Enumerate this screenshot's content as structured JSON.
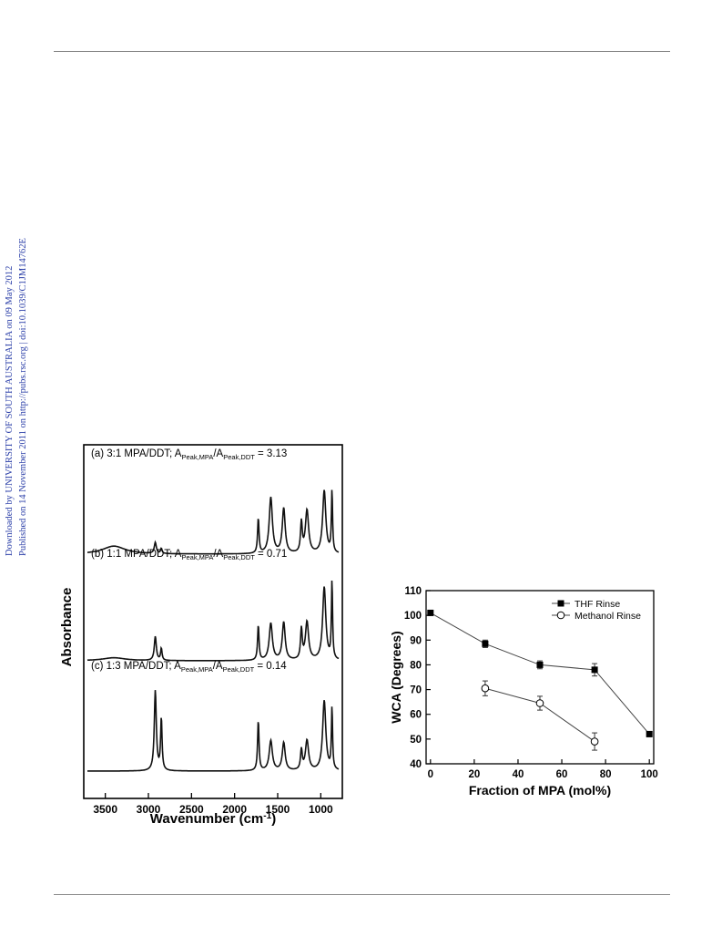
{
  "side_note": {
    "line1": "Downloaded by UNIVERSITY OF SOUTH AUSTRALIA on 09 May 2012",
    "line2": "Published on 14 November 2011 on http://pubs.rsc.org | doi:10.1039/C1JM14762E"
  },
  "chart_data": [
    {
      "type": "line",
      "title": "",
      "xlabel": "Wavenumber (cm-1)",
      "ylabel": "Absorbance",
      "xlim": [
        3750,
        750
      ],
      "x_reversed": true,
      "xticks": [
        3500,
        3000,
        2500,
        2000,
        1500,
        1000
      ],
      "series": [
        {
          "name": "(a) 3:1 MPA/DDT; APeak,MPA/APeak,DDT = 3.13",
          "label_main": "(a) 3:1 MPA/DDT; A",
          "label_sub1": "Peak,MPA",
          "label_mid": "/A",
          "label_sub2": "Peak,DDT",
          "label_tail": " = 3.13",
          "peaks": [
            [
              3400,
              0.08
            ],
            [
              2920,
              0.11
            ],
            [
              2850,
              0.05
            ],
            [
              1725,
              0.35
            ],
            [
              1580,
              0.56
            ],
            [
              1430,
              0.45
            ],
            [
              1225,
              0.3
            ],
            [
              1160,
              0.43
            ],
            [
              960,
              0.63
            ],
            [
              870,
              0.62
            ]
          ]
        },
        {
          "name": "(b) 1:1 MPA/DDT; APeak,MPA/APeak,DDT = 0.71",
          "label_main": "(b) 1:1 MPA/DDT; A",
          "label_sub1": "Peak,MPA",
          "label_mid": "/A",
          "label_sub2": "Peak,DDT",
          "label_tail": " = 0.71",
          "peaks": [
            [
              3400,
              0.03
            ],
            [
              2920,
              0.24
            ],
            [
              2850,
              0.12
            ],
            [
              1725,
              0.35
            ],
            [
              1580,
              0.37
            ],
            [
              1430,
              0.38
            ],
            [
              1225,
              0.3
            ],
            [
              1160,
              0.38
            ],
            [
              960,
              0.73
            ],
            [
              870,
              0.78
            ]
          ]
        },
        {
          "name": "(c) 1:3 MPA/DDT; APeak,MPA/APeak,DDT = 0.14",
          "label_main": "(c) 1:3 MPA/DDT; A",
          "label_sub1": "Peak,MPA",
          "label_mid": "/A",
          "label_sub2": "Peak,DDT",
          "label_tail": " = 0.14",
          "peaks": [
            [
              2920,
              0.8
            ],
            [
              2850,
              0.52
            ],
            [
              1725,
              0.5
            ],
            [
              1580,
              0.3
            ],
            [
              1430,
              0.28
            ],
            [
              1225,
              0.2
            ],
            [
              1160,
              0.3
            ],
            [
              960,
              0.7
            ],
            [
              870,
              0.62
            ]
          ]
        }
      ]
    },
    {
      "type": "scatter",
      "title": "",
      "xlabel": "Fraction of MPA (mol%)",
      "ylabel": "WCA (Degrees)",
      "xlim": [
        -2,
        102
      ],
      "ylim": [
        40,
        110
      ],
      "xticks": [
        0,
        20,
        40,
        60,
        80,
        100
      ],
      "yticks": [
        40,
        50,
        60,
        70,
        80,
        90,
        100,
        110
      ],
      "legend": "top-right",
      "series": [
        {
          "name": "THF Rinse",
          "marker": "filled-square",
          "x": [
            0,
            25,
            50,
            75,
            100
          ],
          "y": [
            101,
            88.5,
            80,
            78,
            52
          ],
          "err": [
            0.8,
            1.5,
            1.6,
            2.5,
            0.8
          ]
        },
        {
          "name": "Methanol Rinse",
          "marker": "open-circle",
          "x": [
            25,
            50,
            75
          ],
          "y": [
            70.5,
            64.5,
            49
          ],
          "err": [
            3,
            2.8,
            3.5
          ]
        }
      ]
    }
  ]
}
